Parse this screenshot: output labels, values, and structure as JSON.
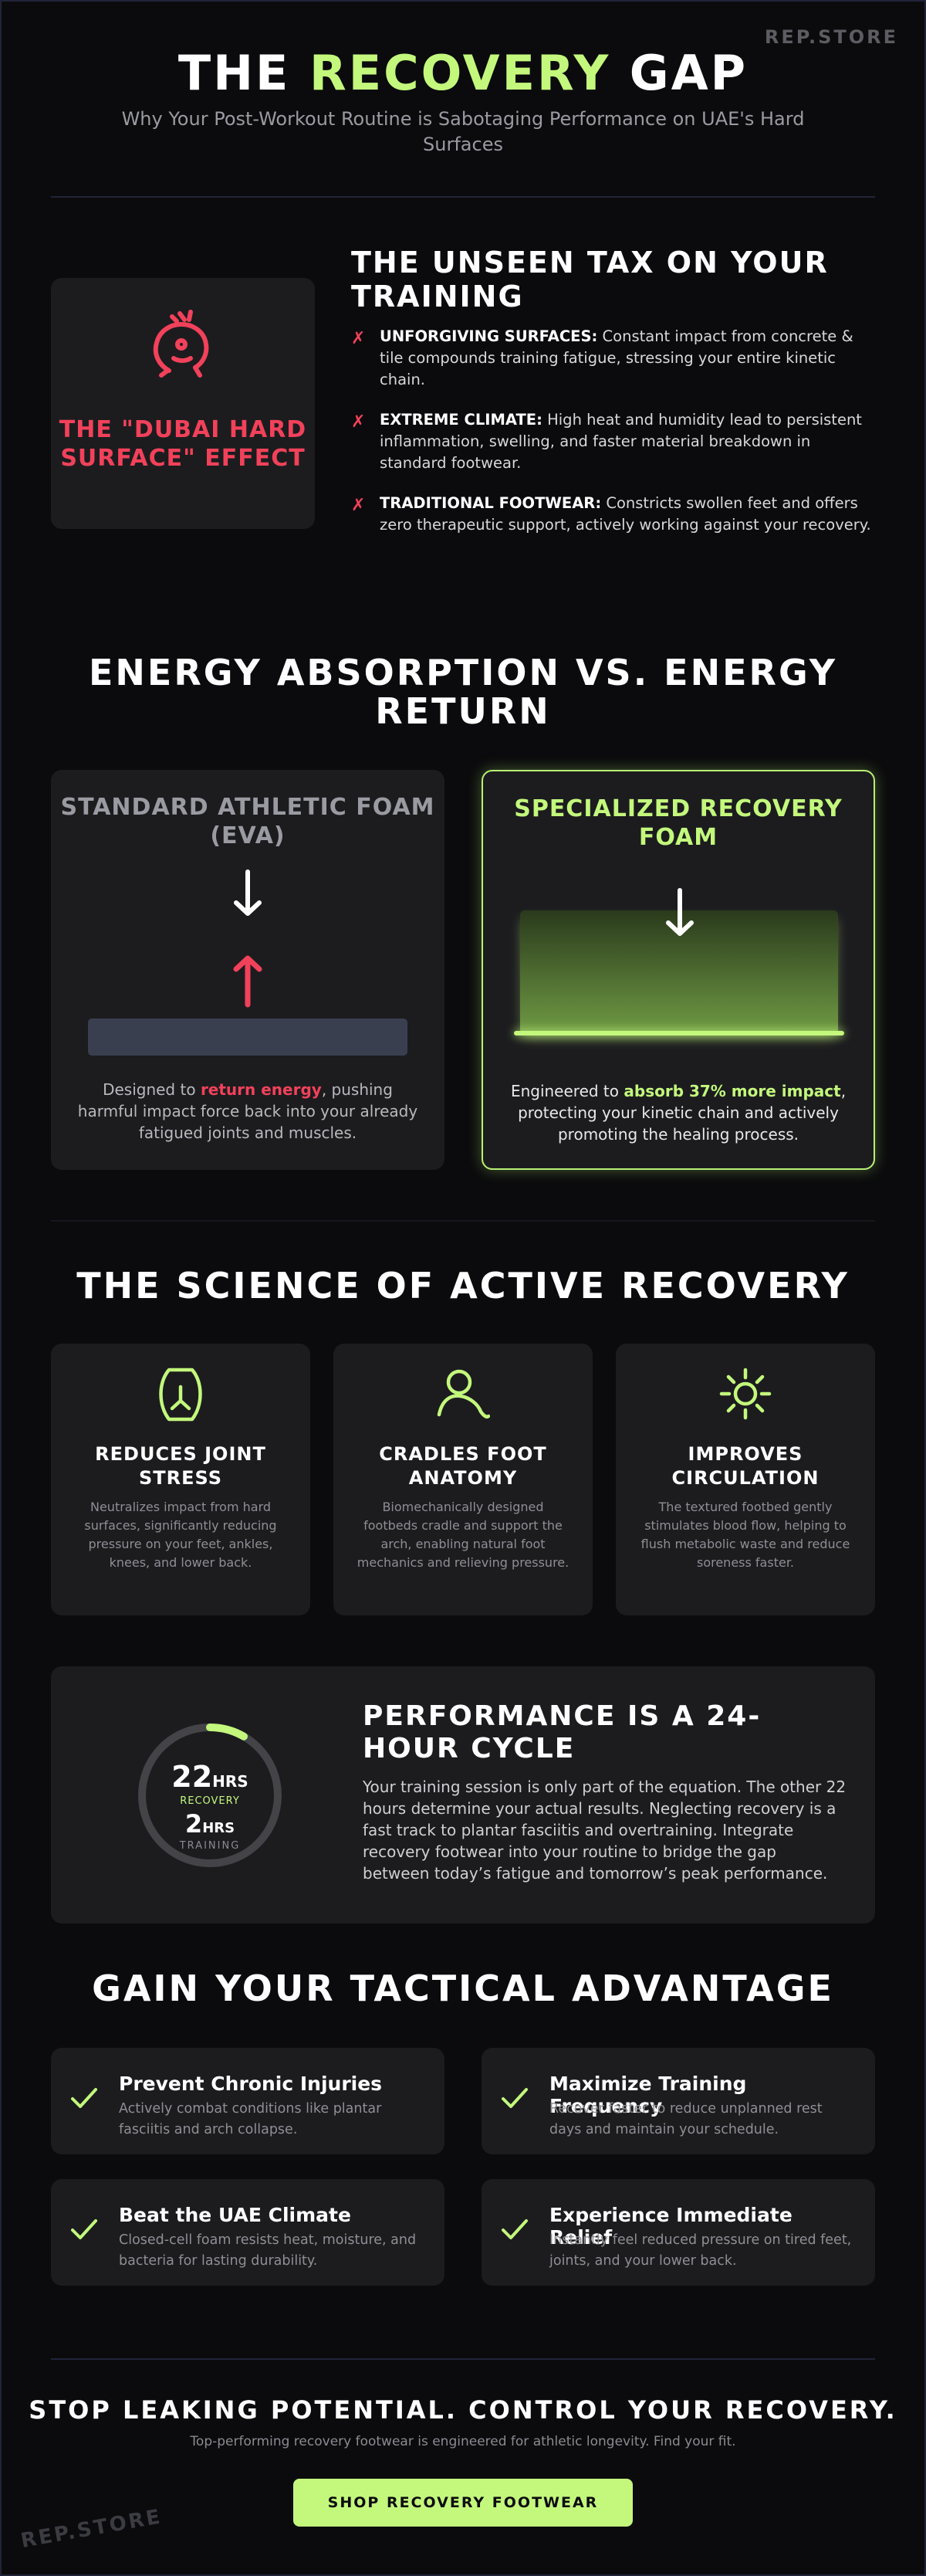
{
  "brand": {
    "watermark_top": "REP.STORE",
    "watermark_bottom": "REP.STORE"
  },
  "colors": {
    "accent_green": "#c3f87c",
    "alert_red": "#f2415a",
    "background": "#0b0b0d",
    "card": "#1c1c1f"
  },
  "hero": {
    "title_part1": "THE ",
    "title_accent": "RECOVERY",
    "title_part2": " GAP",
    "subtitle": "Why Your Post-Workout Routine is Sabotaging Performance on UAE's Hard Surfaces"
  },
  "unseen_tax": {
    "card_label": "THE \"DUBAI HARD SURFACE\" EFFECT",
    "card_icon": "stressed-face-icon",
    "title": "THE UNSEEN TAX ON YOUR TRAINING",
    "bullets": [
      {
        "title": "UNFORGIVING SURFACES:",
        "text": " Constant impact from concrete & tile compounds training fatigue, stressing your entire kinetic chain."
      },
      {
        "title": "EXTREME CLIMATE:",
        "text": " High heat and humidity lead to persistent inflammation, swelling, and faster material breakdown in standard footwear."
      },
      {
        "title": "TRADITIONAL FOOTWEAR:",
        "text": " Constricts swollen feet and offers zero therapeutic support, actively working against your recovery."
      }
    ]
  },
  "energy": {
    "title": "ENERGY ABSORPTION VS. ENERGY RETURN",
    "standard": {
      "title": "STANDARD ATHLETIC FOAM (EVA)",
      "desc_before": "Designed to ",
      "desc_highlight": "return energy",
      "desc_after": ", pushing harmful impact force back into your already fatigued joints and muscles."
    },
    "recovery": {
      "title": "SPECIALIZED RECOVERY FOAM",
      "desc_before": "Engineered to ",
      "desc_highlight": "absorb 37% more impact",
      "desc_after": ", protecting your kinetic chain and actively promoting the healing process."
    }
  },
  "science": {
    "title": "THE SCIENCE OF ACTIVE RECOVERY",
    "cards": [
      {
        "icon": "joint-icon",
        "title": "REDUCES JOINT STRESS",
        "desc": "Neutralizes impact from hard surfaces, significantly reducing pressure on your feet, ankles, knees, and lower back."
      },
      {
        "icon": "foot-cradle-icon",
        "title": "CRADLES FOOT ANATOMY",
        "desc": "Biomechanically designed footbeds cradle and support the arch, enabling natural foot mechanics and relieving pressure."
      },
      {
        "icon": "sun-icon",
        "title": "IMPROVES CIRCULATION",
        "desc": "The textured footbed gently stimulates blood flow, helping to flush metabolic waste and reduce soreness faster."
      }
    ]
  },
  "cycle": {
    "recovery_hours": "22",
    "recovery_unit": "HRS",
    "recovery_label": "RECOVERY",
    "training_hours": "2",
    "training_unit": "HRS",
    "training_label": "TRAINING",
    "training_fraction": 0.0833,
    "title": "PERFORMANCE IS A 24-HOUR CYCLE",
    "text": "Your training session is only part of the equation. The other 22 hours determine your actual results. Neglecting recovery is a fast track to plantar fasciitis and overtraining. Integrate recovery footwear into your routine to bridge the gap between today’s fatigue and tomorrow’s peak performance."
  },
  "advantage": {
    "title": "GAIN YOUR TACTICAL ADVANTAGE",
    "items": [
      {
        "title": "Prevent Chronic Injuries",
        "desc": "Actively combat conditions like plantar fasciitis and arch collapse."
      },
      {
        "title": "Maximize Training Frequency",
        "desc": "Recover faster to reduce unplanned rest days and maintain your schedule."
      },
      {
        "title": "Beat the UAE Climate",
        "desc": "Closed-cell foam resists heat, moisture, and bacteria for lasting durability."
      },
      {
        "title": "Experience Immediate Relief",
        "desc": "Instantly feel reduced pressure on tired feet, joints, and your lower back."
      }
    ]
  },
  "cta": {
    "title": "STOP LEAKING POTENTIAL. CONTROL YOUR RECOVERY.",
    "subtitle": "Top-performing recovery footwear is engineered for athletic longevity. Find your fit.",
    "button": "SHOP RECOVERY FOOTWEAR"
  }
}
